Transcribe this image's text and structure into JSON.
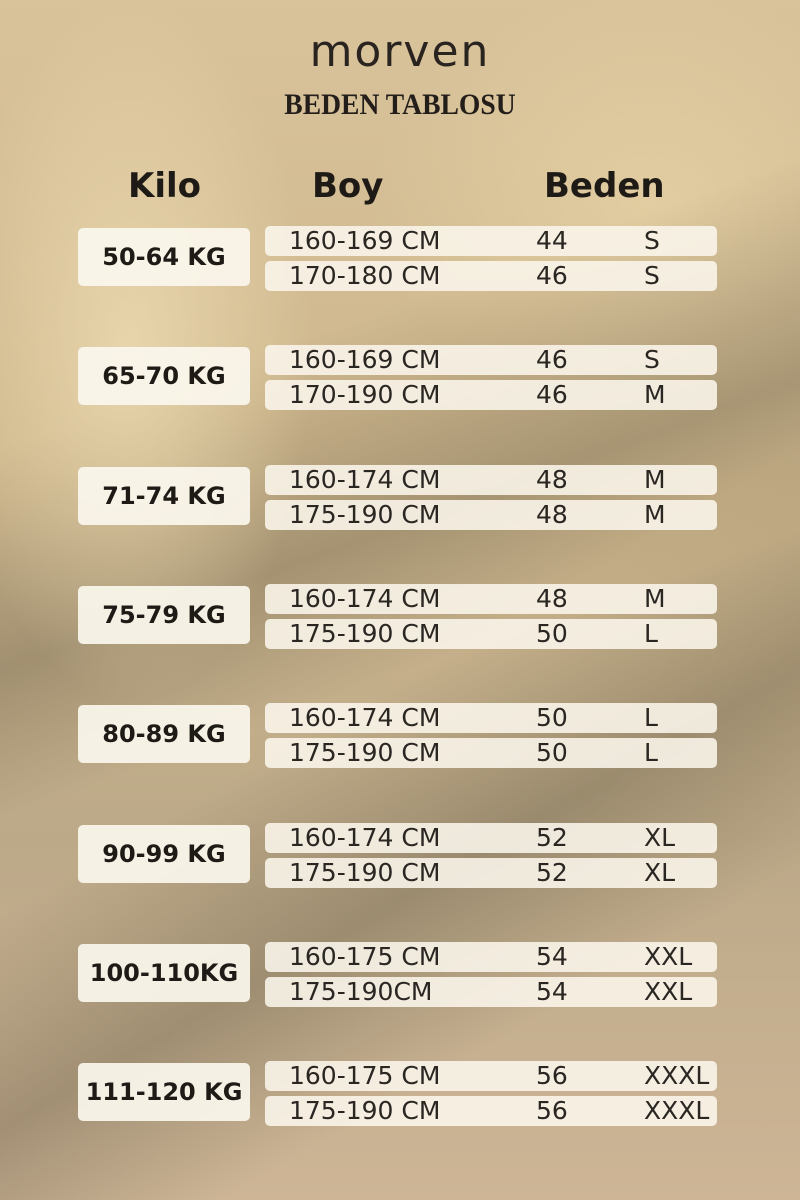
{
  "brand": "morven",
  "title": "BEDEN TABLOSU",
  "headers": {
    "kilo": "Kilo",
    "boy": "Boy",
    "beden": "Beden"
  },
  "groups": [
    {
      "kilo": "50-64 KG",
      "rows": [
        {
          "boy": "160-169 CM",
          "num": "44",
          "size": "S"
        },
        {
          "boy": "170-180 CM",
          "num": "46",
          "size": "S"
        }
      ]
    },
    {
      "kilo": "65-70 KG",
      "rows": [
        {
          "boy": "160-169 CM",
          "num": "46",
          "size": "S"
        },
        {
          "boy": "170-190 CM",
          "num": "46",
          "size": "M"
        }
      ]
    },
    {
      "kilo": "71-74 KG",
      "rows": [
        {
          "boy": "160-174 CM",
          "num": "48",
          "size": "M"
        },
        {
          "boy": "175-190 CM",
          "num": "48",
          "size": "M"
        }
      ]
    },
    {
      "kilo": "75-79 KG",
      "rows": [
        {
          "boy": "160-174 CM",
          "num": "48",
          "size": "M"
        },
        {
          "boy": "175-190 CM",
          "num": "50",
          "size": "L"
        }
      ]
    },
    {
      "kilo": "80-89 KG",
      "rows": [
        {
          "boy": "160-174 CM",
          "num": "50",
          "size": "L"
        },
        {
          "boy": "175-190 CM",
          "num": "50",
          "size": "L"
        }
      ]
    },
    {
      "kilo": "90-99 KG",
      "rows": [
        {
          "boy": "160-174 CM",
          "num": "52",
          "size": "XL"
        },
        {
          "boy": "175-190 CM",
          "num": "52",
          "size": "XL"
        }
      ]
    },
    {
      "kilo": "100-110KG",
      "rows": [
        {
          "boy": "160-175 CM",
          "num": "54",
          "size": "XXL"
        },
        {
          "boy": "175-190CM",
          "num": "54",
          "size": "XXL"
        }
      ]
    },
    {
      "kilo": "111-120 KG",
      "rows": [
        {
          "boy": "160-175 CM",
          "num": "56",
          "size": "XXXL"
        },
        {
          "boy": "175-190 CM",
          "num": "56",
          "size": "XXXL"
        }
      ]
    }
  ]
}
